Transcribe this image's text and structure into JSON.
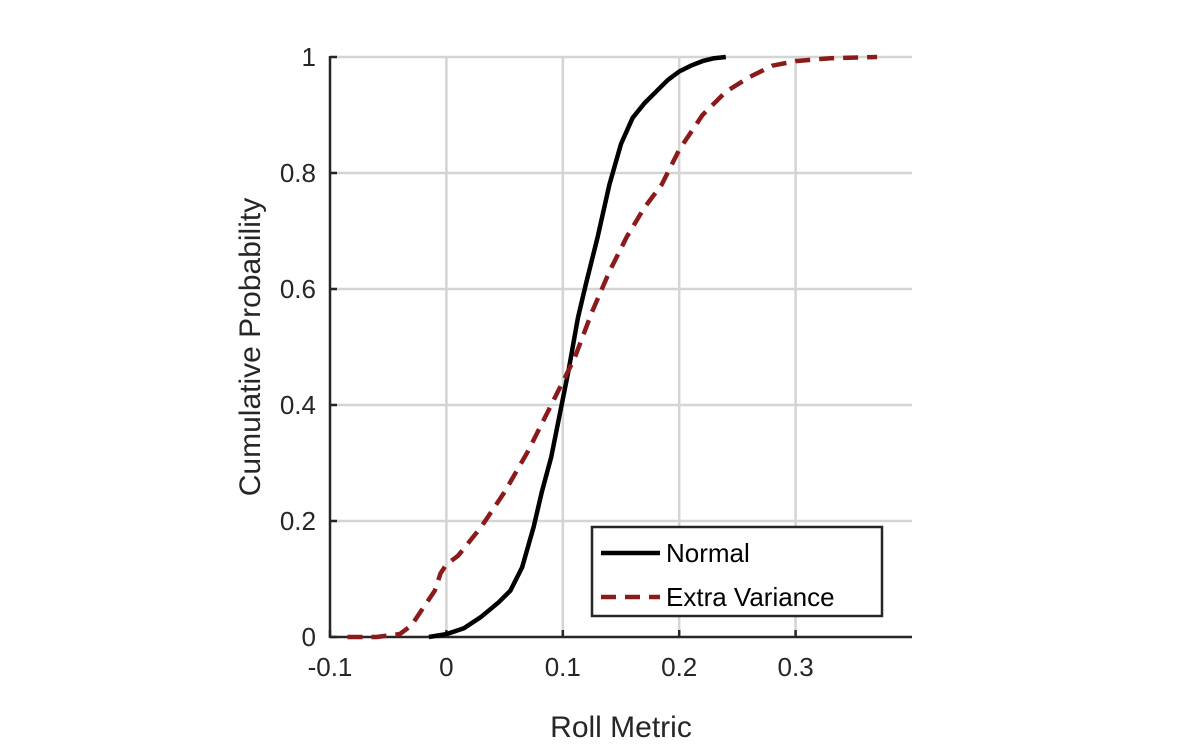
{
  "chart_data": {
    "type": "line",
    "title": "",
    "xlabel": "Roll Metric",
    "ylabel": "Cumulative Probability",
    "xlim": [
      -0.1,
      0.4
    ],
    "ylim": [
      0,
      1
    ],
    "xticks": [
      -0.1,
      0,
      0.1,
      0.2,
      0.3
    ],
    "xtick_labels": [
      "-0.1",
      "0",
      "0.1",
      "0.2",
      "0.3"
    ],
    "yticks": [
      0,
      0.2,
      0.4,
      0.6,
      0.8,
      1
    ],
    "ytick_labels": [
      "0",
      "0.2",
      "0.4",
      "0.6",
      "0.8",
      "1"
    ],
    "grid": true,
    "legend_position": "bottom-right",
    "series": [
      {
        "name": "Normal",
        "color": "#000000",
        "dash": "solid",
        "x": [
          -0.015,
          0.0,
          0.015,
          0.03,
          0.045,
          0.055,
          0.065,
          0.075,
          0.082,
          0.09,
          0.097,
          0.105,
          0.113,
          0.12,
          0.13,
          0.14,
          0.15,
          0.16,
          0.17,
          0.18,
          0.19,
          0.2,
          0.21,
          0.22,
          0.23,
          0.24
        ],
        "y": [
          0.0,
          0.005,
          0.015,
          0.035,
          0.06,
          0.08,
          0.12,
          0.19,
          0.25,
          0.31,
          0.38,
          0.46,
          0.55,
          0.61,
          0.69,
          0.78,
          0.85,
          0.895,
          0.92,
          0.94,
          0.96,
          0.975,
          0.985,
          0.993,
          0.998,
          1.0
        ]
      },
      {
        "name": "Extra Variance",
        "color": "#8B1A1A",
        "dash": "dashed",
        "x": [
          -0.085,
          -0.06,
          -0.04,
          -0.03,
          -0.02,
          -0.01,
          -0.005,
          0.0,
          0.01,
          0.03,
          0.05,
          0.07,
          0.09,
          0.11,
          0.125,
          0.14,
          0.155,
          0.17,
          0.185,
          0.2,
          0.22,
          0.24,
          0.26,
          0.28,
          0.3,
          0.33,
          0.37
        ],
        "y": [
          0.0,
          0.0,
          0.005,
          0.02,
          0.05,
          0.08,
          0.11,
          0.125,
          0.14,
          0.19,
          0.25,
          0.32,
          0.4,
          0.48,
          0.56,
          0.63,
          0.69,
          0.74,
          0.78,
          0.84,
          0.9,
          0.94,
          0.965,
          0.985,
          0.993,
          0.998,
          1.0
        ]
      }
    ]
  }
}
